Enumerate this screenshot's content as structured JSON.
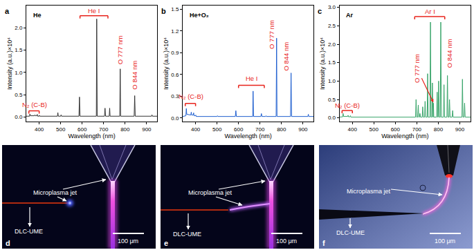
{
  "chart_data": [
    {
      "type": "line",
      "panel": "a",
      "title": "He",
      "x_label": "Wavelength (nm)",
      "y_label": "Intensity (a.u.)×10⁴",
      "color": "#333333",
      "x": [
        340,
        355,
        357,
        359,
        378,
        380,
        382,
        389,
        391,
        393,
        399,
        401,
        403,
        445,
        447,
        449,
        485,
        487,
        489,
        500,
        502,
        504,
        585,
        587.6,
        590,
        666,
        667.8,
        670,
        704,
        706.5,
        709,
        726,
        728.1,
        730,
        775,
        777.2,
        779,
        842,
        844.6,
        847,
        923,
        925,
        927,
        950
      ],
      "values": [
        0.02,
        0.02,
        0.07,
        0.03,
        0.03,
        0.05,
        0.03,
        0.03,
        0.06,
        0.02,
        0.02,
        0.04,
        0.02,
        0.02,
        0.03,
        0.02,
        0.02,
        0.1,
        0.02,
        0.02,
        0.05,
        0.02,
        0.02,
        0.45,
        0.02,
        0.02,
        2.2,
        0.02,
        0.02,
        0.2,
        0.02,
        0.02,
        0.2,
        0.02,
        0.02,
        1.08,
        0.02,
        0.02,
        0.48,
        0.02,
        0.02,
        0.05,
        0.02,
        0.02
      ],
      "xlim": [
        340,
        950
      ],
      "xticks": [
        400,
        500,
        600,
        700,
        800,
        900
      ],
      "ylim": [
        -0.1,
        2.5
      ],
      "yticks": [
        {
          "value": 0,
          "label": "0.0"
        },
        {
          "value": 0.5,
          "label": "0.5"
        },
        {
          "value": 1,
          "label": "1.0"
        },
        {
          "value": 1.5,
          "label": "1.5"
        },
        {
          "value": 2,
          "label": "2.0"
        }
      ],
      "annotations": [
        {
          "text": "N₂ (C-B)",
          "x": 378,
          "y": 0.28,
          "bracket": [
            352,
            400,
            0.14
          ]
        },
        {
          "text": "He I",
          "x": 655,
          "y": 2.38,
          "bracket": [
            590,
            720,
            2.27
          ]
        },
        {
          "text": "O 777 nm",
          "x": 777,
          "y": 1.5
        },
        {
          "text": "O 844 nm",
          "x": 844,
          "y": 0.95
        }
      ]
    },
    {
      "type": "line",
      "panel": "b",
      "title": "He+O₂",
      "x_label": "Wavelength (nm)",
      "y_label": "Intensity (a.u.)×10⁴",
      "color": "#1f5fcf",
      "x": [
        340,
        355,
        357,
        359,
        378,
        380,
        382,
        389,
        391,
        393,
        399,
        401,
        403,
        445,
        447,
        449,
        485,
        487,
        489,
        500,
        502,
        504,
        585,
        587.6,
        590,
        666,
        667.8,
        670,
        704,
        706.5,
        709,
        726,
        728.1,
        730,
        775,
        777.2,
        779,
        842,
        844.6,
        847,
        923,
        925,
        927,
        950
      ],
      "values": [
        0.02,
        0.03,
        0.13,
        0.05,
        0.04,
        0.08,
        0.04,
        0.04,
        0.07,
        0.03,
        0.03,
        0.04,
        0.02,
        0.02,
        0.02,
        0.02,
        0.02,
        0.02,
        0.02,
        0.02,
        0.03,
        0.02,
        0.02,
        0.1,
        0.02,
        0.02,
        0.37,
        0.02,
        0.02,
        0.06,
        0.02,
        0.02,
        0.03,
        0.02,
        0.02,
        1.1,
        0.02,
        0.02,
        0.62,
        0.02,
        0.02,
        0.05,
        0.02,
        0.02
      ],
      "xlim": [
        340,
        950
      ],
      "xticks": [
        400,
        500,
        600,
        700,
        800,
        900
      ],
      "ylim": [
        -0.05,
        1.55
      ],
      "yticks": [
        {
          "value": 0,
          "label": "0.0"
        },
        {
          "value": 0.3,
          "label": "0.3"
        },
        {
          "value": 0.6,
          "label": "0.6"
        },
        {
          "value": 0.9,
          "label": "0.9"
        },
        {
          "value": 1.2,
          "label": "1.2"
        },
        {
          "value": 1.5,
          "label": "1.5"
        }
      ],
      "annotations": [
        {
          "text": "N₂ (C-B)",
          "x": 378,
          "y": 0.3,
          "bracket": [
            352,
            400,
            0.2
          ]
        },
        {
          "text": "He I",
          "x": 660,
          "y": 0.55,
          "bracket": [
            600,
            720,
            0.45
          ]
        },
        {
          "text": "O 777 nm",
          "x": 752,
          "y": 1.15
        },
        {
          "text": "O 844 nm",
          "x": 820,
          "y": 0.85
        }
      ]
    },
    {
      "type": "line",
      "panel": "c",
      "title": "Ar",
      "x_label": "Wavelength (nm)",
      "y_label": "Intensity (a.u.)×10⁴",
      "color": "#3aa56b",
      "x": [
        340,
        355,
        357,
        359,
        378,
        380,
        382,
        389,
        391,
        393,
        694,
        696.5,
        699,
        704,
        706.7,
        709,
        712,
        714.7,
        717,
        725,
        727.3,
        730,
        736,
        738.4,
        741,
        748,
        750.4,
        752.5,
        761,
        763.5,
        766,
        770,
        772.4,
        774.5,
        775.5,
        777.2,
        779,
        792,
        794.8,
        797,
        799,
        801.5,
        804,
        809,
        811.5,
        814,
        824,
        826.5,
        829,
        840,
        842.5,
        845,
        850,
        852.1,
        855,
        864,
        866.8,
        869,
        910,
        912.3,
        915,
        920,
        922.4,
        925,
        950
      ],
      "values": [
        0.02,
        0.03,
        0.12,
        0.04,
        0.04,
        0.07,
        0.03,
        0.03,
        0.06,
        0.02,
        0.02,
        0.5,
        0.02,
        0.02,
        0.35,
        0.02,
        0.02,
        0.12,
        0.02,
        0.02,
        0.3,
        0.02,
        0.02,
        0.45,
        0.02,
        0.02,
        1.2,
        0.02,
        0.02,
        2.6,
        0.02,
        0.02,
        0.95,
        0.02,
        0.02,
        0.4,
        0.02,
        0.02,
        0.7,
        0.02,
        0.02,
        1.0,
        0.02,
        0.02,
        2.6,
        0.02,
        0.02,
        0.9,
        0.02,
        0.02,
        1.15,
        0.02,
        0.02,
        0.5,
        0.02,
        0.02,
        0.2,
        0.02,
        0.02,
        1.05,
        0.02,
        0.02,
        0.4,
        0.02,
        0.02
      ],
      "xlim": [
        340,
        950
      ],
      "xticks": [
        400,
        500,
        600,
        700,
        800,
        900
      ],
      "ylim": [
        -0.1,
        3.05
      ],
      "yticks": [
        {
          "value": 0,
          "label": "0.0"
        },
        {
          "value": 0.5,
          "label": "0.5"
        },
        {
          "value": 1,
          "label": "1.0"
        },
        {
          "value": 1.5,
          "label": "1.5"
        },
        {
          "value": 2,
          "label": "2.0"
        },
        {
          "value": 2.5,
          "label": "2.5"
        },
        {
          "value": 3,
          "label": "3.0"
        }
      ],
      "annotations": [
        {
          "text": "N₂ (C-B)",
          "x": 378,
          "y": 0.35,
          "bracket": [
            352,
            400,
            0.2
          ]
        },
        {
          "text": "Ar I",
          "x": 760,
          "y": 2.9,
          "bracket": [
            690,
            830,
            2.75
          ]
        },
        {
          "text": "O 777 nm",
          "x": 700,
          "y": 1.35,
          "arrow": [
            777,
            0.42
          ]
        },
        {
          "text": "O 844 nm",
          "x": 850,
          "y": 1.75
        }
      ]
    }
  ],
  "images": [
    {
      "panel": "d",
      "jet": "Microplasma jet",
      "electrode": "DLC-UME",
      "scale_bar": "100 μm"
    },
    {
      "panel": "e",
      "jet": "Microplasma jet",
      "electrode": "DLC-UME",
      "scale_bar": "100 μm"
    },
    {
      "panel": "f",
      "jet": "Microplasma jet",
      "electrode": "DLC-UME",
      "scale_bar": "100 μm"
    }
  ]
}
